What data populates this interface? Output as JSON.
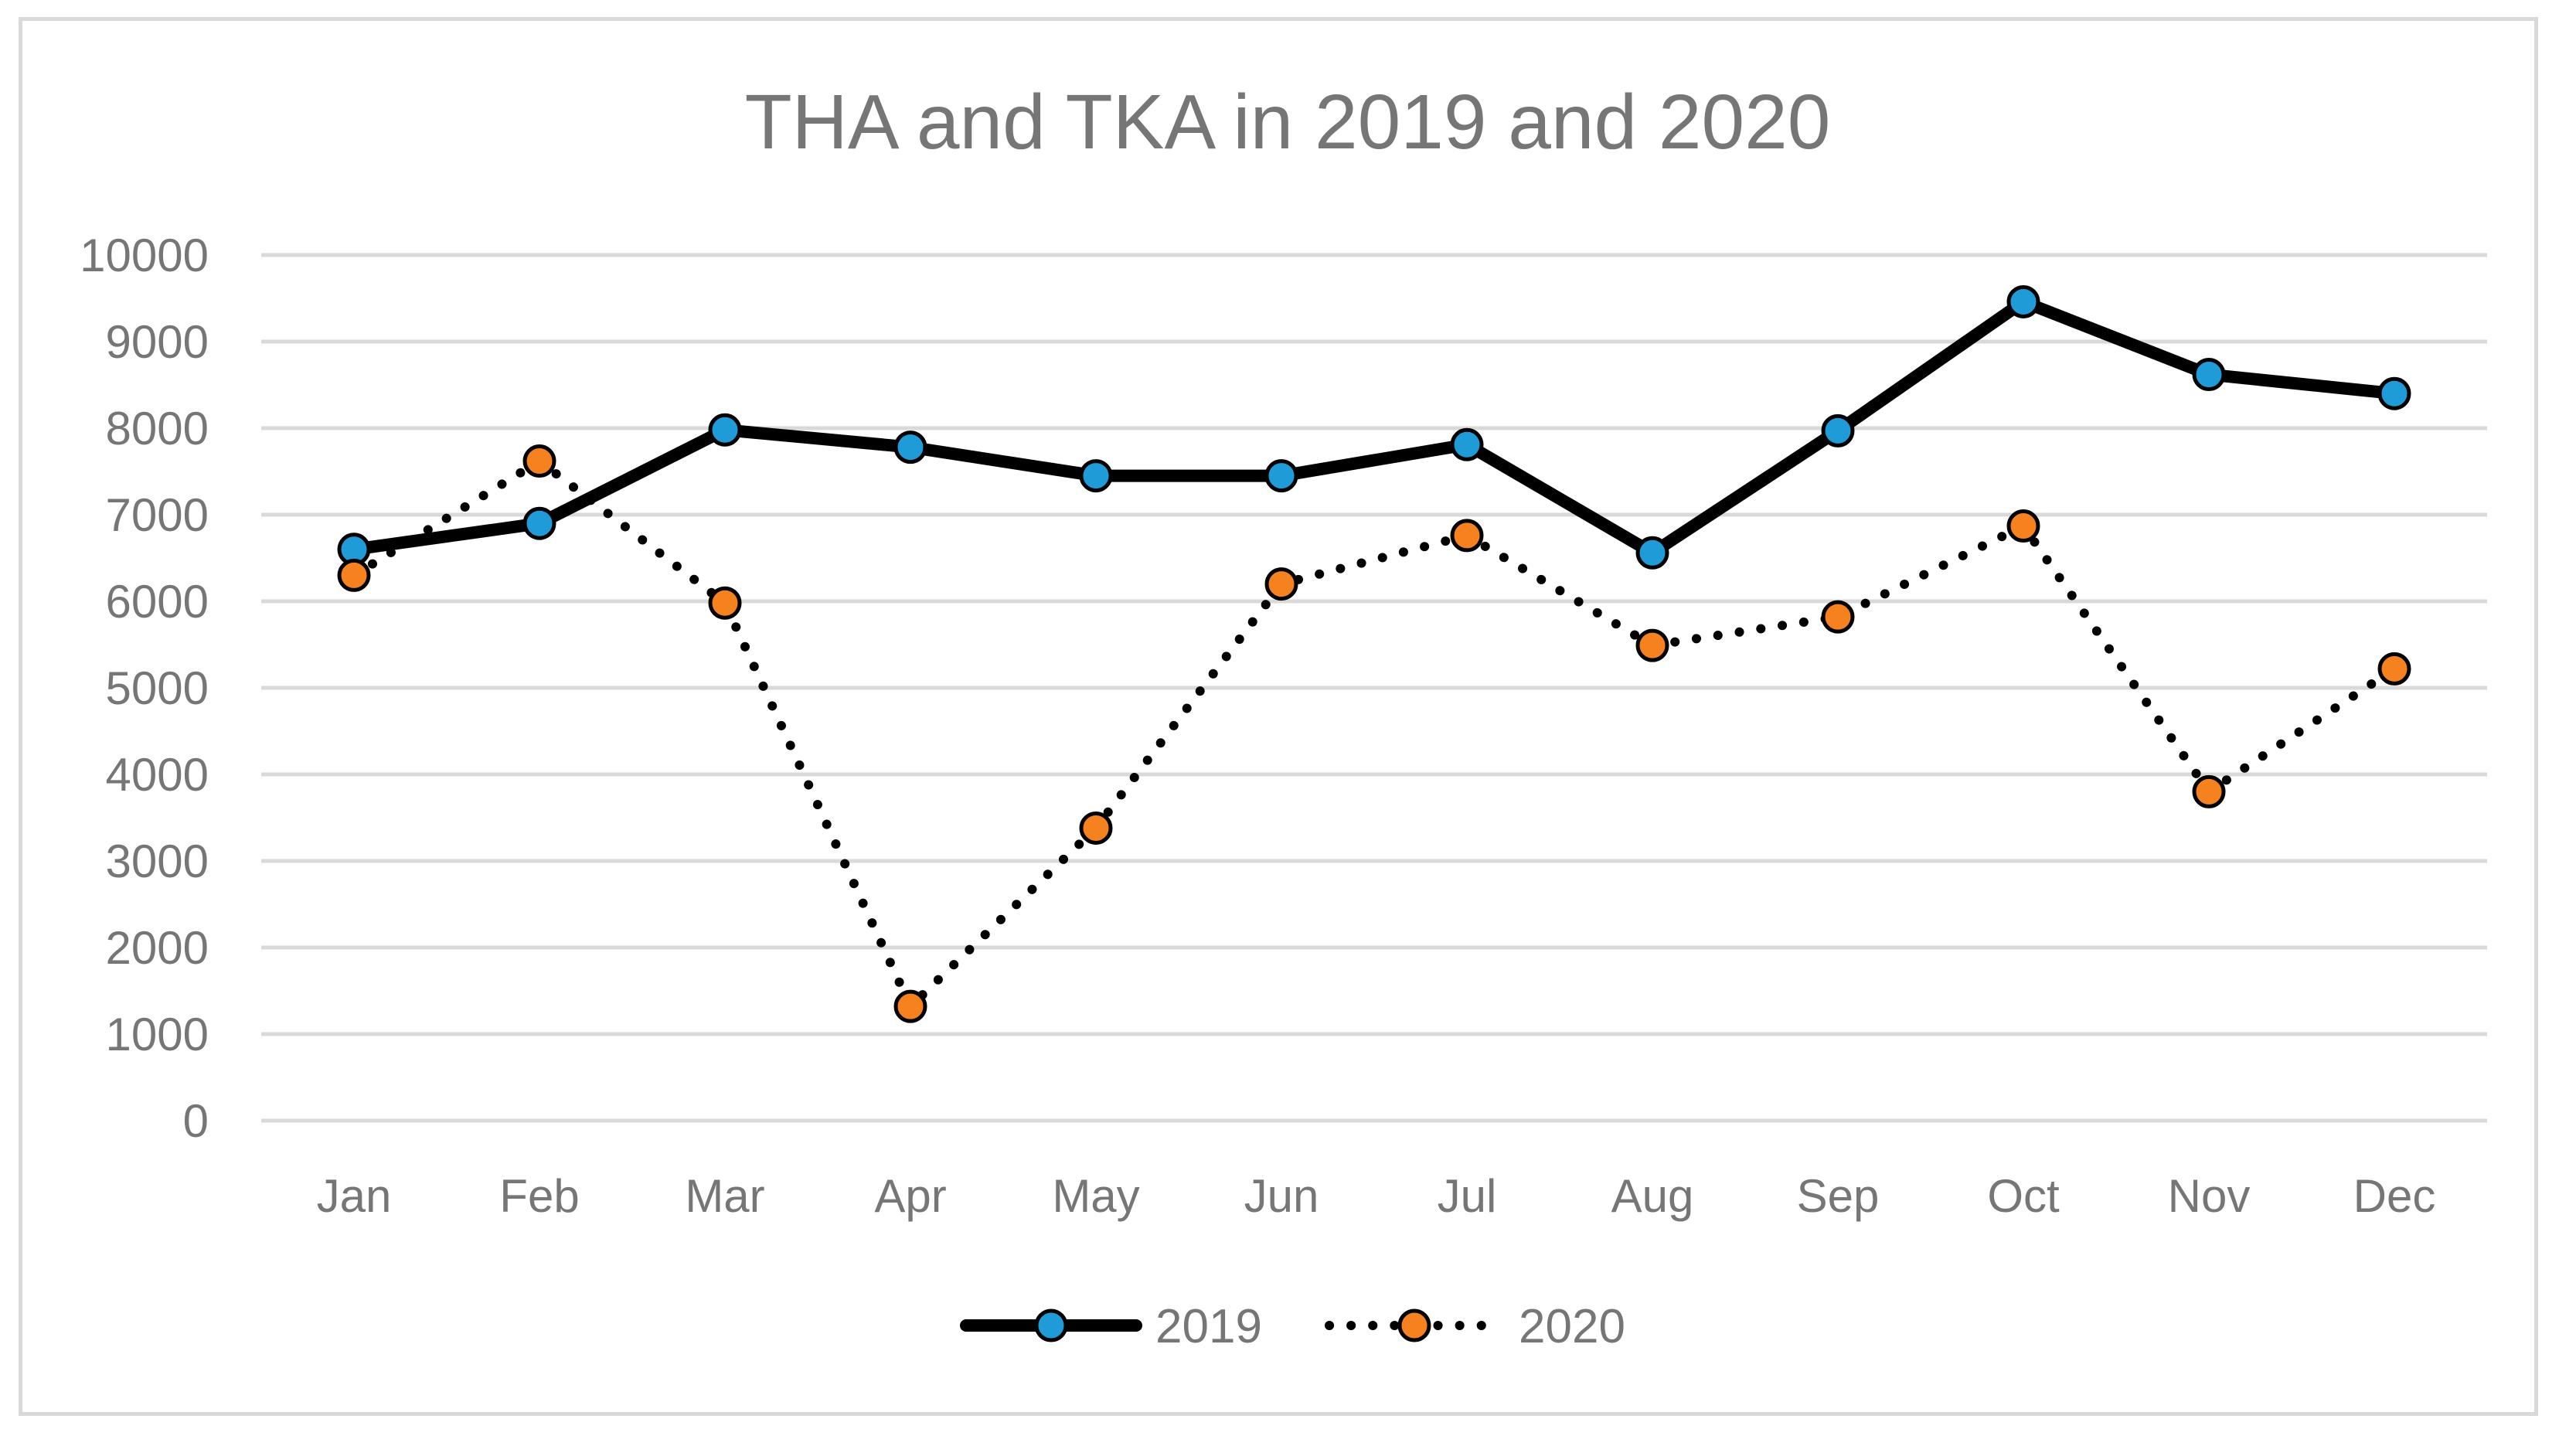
{
  "chart_data": {
    "type": "line",
    "title": "THA and TKA in 2019 and 2020",
    "xlabel": "",
    "ylabel": "",
    "categories": [
      "Jan",
      "Feb",
      "Mar",
      "Apr",
      "May",
      "Jun",
      "Jul",
      "Aug",
      "Sep",
      "Oct",
      "Nov",
      "Dec"
    ],
    "ylim": [
      0,
      10000
    ],
    "yticks": [
      0,
      1000,
      2000,
      3000,
      4000,
      5000,
      6000,
      7000,
      8000,
      9000,
      10000
    ],
    "grid": true,
    "legend_position": "bottom",
    "series": [
      {
        "name": "2019",
        "style": "solid",
        "line_color": "#000000",
        "marker_color": "#1f9bd7",
        "values": [
          6600,
          6900,
          7980,
          7780,
          7450,
          7450,
          7810,
          6560,
          7970,
          9460,
          8620,
          8400
        ]
      },
      {
        "name": "2020",
        "style": "dotted",
        "line_color": "#000000",
        "marker_color": "#f5821f",
        "values": [
          6300,
          7620,
          5980,
          1320,
          3380,
          6200,
          6760,
          5490,
          5820,
          6870,
          3800,
          5220
        ]
      }
    ]
  }
}
